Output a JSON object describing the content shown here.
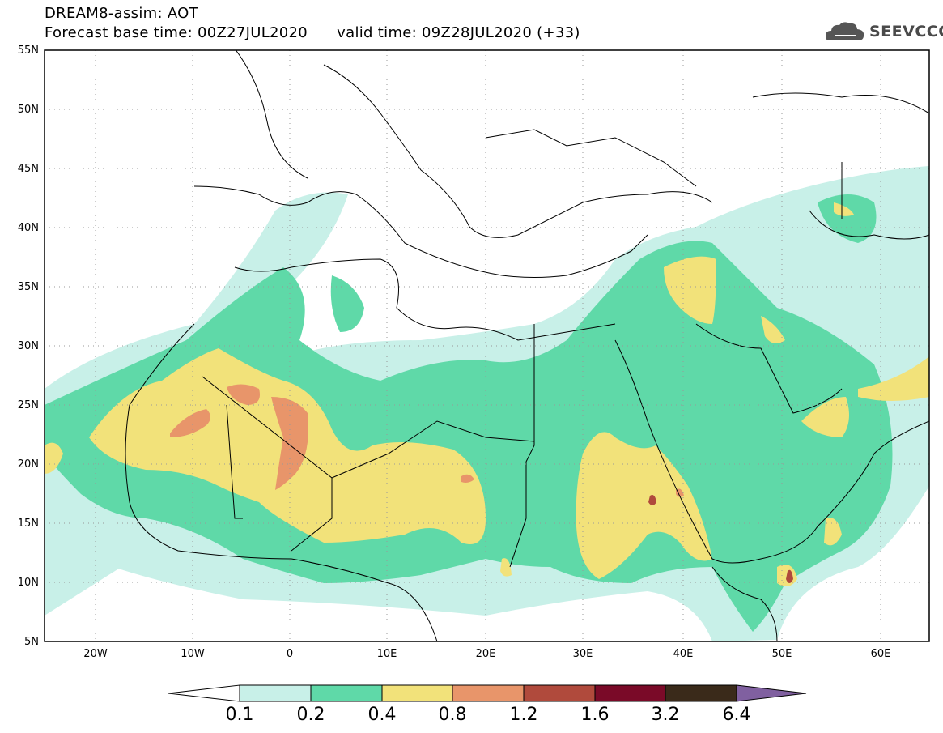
{
  "header": {
    "title": "DREAM8-assim: AOT",
    "base_time": "Forecast base time: 00Z27JUL2020",
    "valid_time": "valid time: 09Z28JUL2020 (+33)",
    "logo_text": "SEEVCCC"
  },
  "axes": {
    "lat_labels": [
      "55N",
      "50N",
      "45N",
      "40N",
      "35N",
      "30N",
      "25N",
      "20N",
      "15N",
      "10N",
      "5N"
    ],
    "lon_labels": [
      "20W",
      "10W",
      "0",
      "10E",
      "20E",
      "30E",
      "40E",
      "50E",
      "60E"
    ]
  },
  "colorbar": {
    "levels": [
      "0.1",
      "0.2",
      "0.4",
      "0.8",
      "1.2",
      "1.6",
      "3.2",
      "6.4"
    ],
    "colors": [
      "#ffffff",
      "#c8f0e8",
      "#5fd9a8",
      "#f2e27a",
      "#e8956a",
      "#b04a3c",
      "#7a0a28",
      "#3a2a1a",
      "#8060a0"
    ]
  }
}
